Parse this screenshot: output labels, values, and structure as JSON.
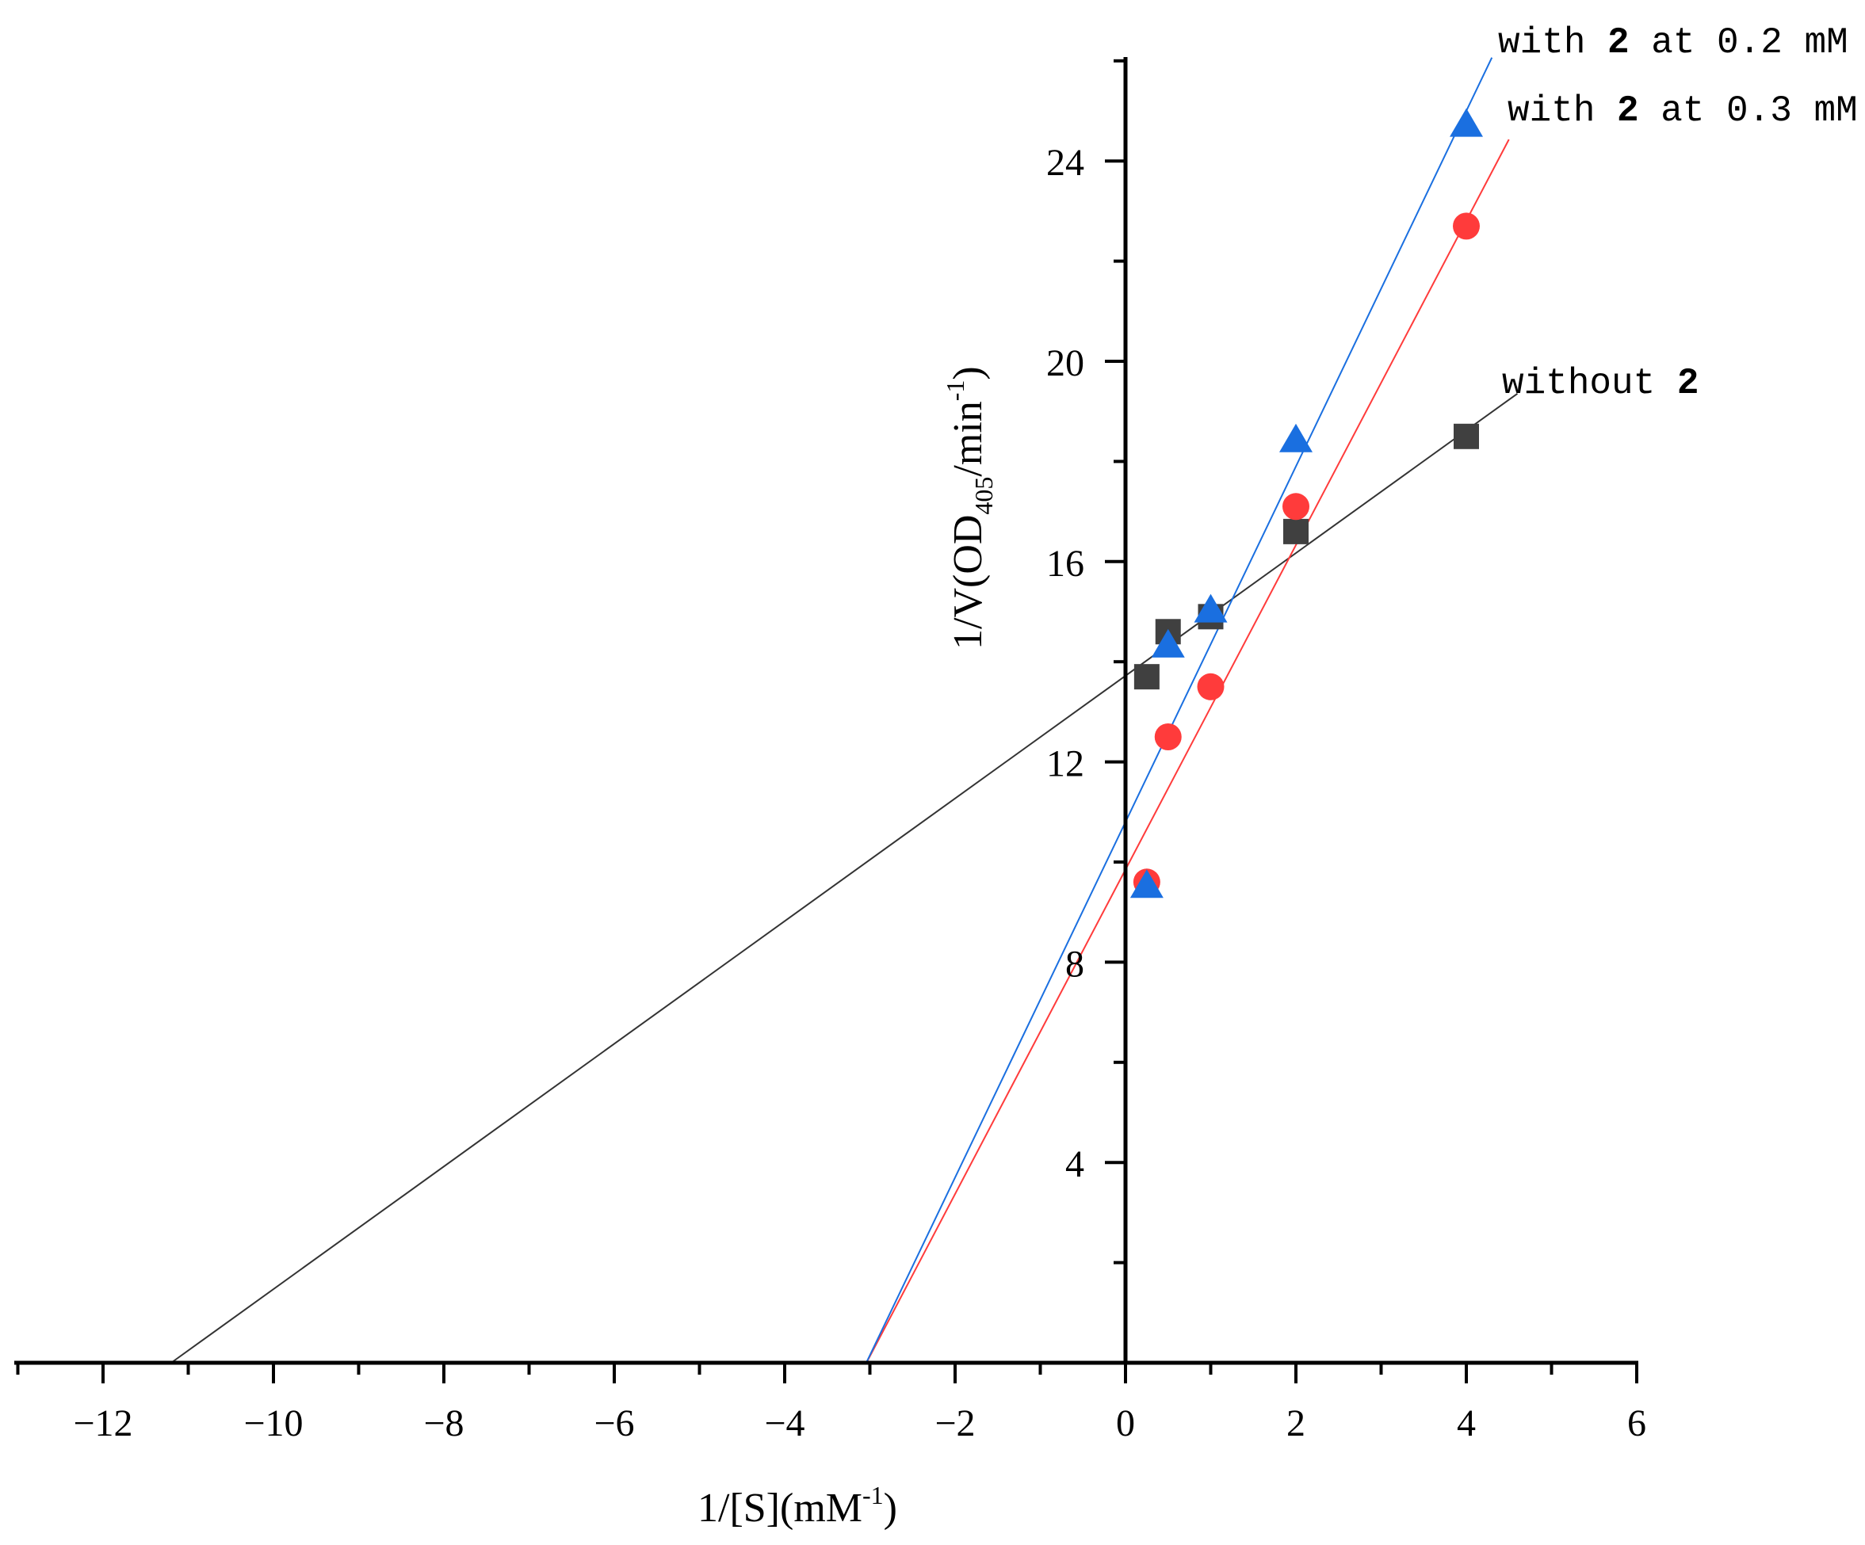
{
  "chart_data": {
    "type": "scatter",
    "title": "",
    "xlabel": {
      "main": "1/[S](mM",
      "sup": "-1",
      "tail": ")"
    },
    "ylabel": {
      "main": "1/V(OD",
      "sub": "405",
      "mid": "/min",
      "sup": "-1",
      "tail": ")"
    },
    "xlim": [
      -13,
      6
    ],
    "ylim": [
      0,
      26
    ],
    "x_ticks": [
      -12,
      -10,
      -8,
      -6,
      -4,
      -2,
      0,
      2,
      4,
      6
    ],
    "x_tick_labels": [
      "−12",
      "−10",
      "−8",
      "−6",
      "−4",
      "−2",
      "0",
      "2",
      "4",
      "6"
    ],
    "y_ticks": [
      4,
      8,
      12,
      16,
      20,
      24
    ],
    "y_tick_labels": [
      "4",
      "8",
      "12",
      "16",
      "20",
      "24"
    ],
    "grid": false,
    "series": [
      {
        "name": "without 2",
        "label_text": "without ",
        "label_num": "2",
        "marker": "square",
        "color": "#404040",
        "line_color": "#333333",
        "x": [
          0.25,
          0.5,
          1,
          2,
          4
        ],
        "y": [
          13.7,
          14.6,
          14.9,
          16.6,
          18.5
        ],
        "fit": {
          "x0": -11.2,
          "x1": 4.6,
          "slope": 1.225,
          "intercept": 13.72
        }
      },
      {
        "name": "with 2 at 0.3 mM",
        "label_text": "with ",
        "label_num": "2",
        "label_tail": " at 0.3 mM",
        "marker": "circle",
        "color": "#ff3b3b",
        "line_color": "#ff3b3b",
        "x": [
          0.25,
          0.5,
          1,
          2,
          4
        ],
        "y": [
          9.6,
          12.5,
          13.5,
          17.1,
          22.7
        ],
        "fit": {
          "x0": -3.05,
          "x1": 4.5,
          "slope": 3.24,
          "intercept": 9.85
        }
      },
      {
        "name": "with 2 at 0.2 mM",
        "label_text": "with ",
        "label_num": "2",
        "label_tail": " at 0.2 mM",
        "marker": "triangle",
        "color": "#1a6fe0",
        "line_color": "#1a6fe0",
        "x": [
          0.25,
          0.5,
          1,
          2,
          4
        ],
        "y": [
          9.5,
          14.3,
          15.0,
          18.4,
          24.7
        ],
        "fit": {
          "x0": -3.05,
          "x1": 4.3,
          "slope": 3.55,
          "intercept": 10.8
        }
      }
    ]
  }
}
